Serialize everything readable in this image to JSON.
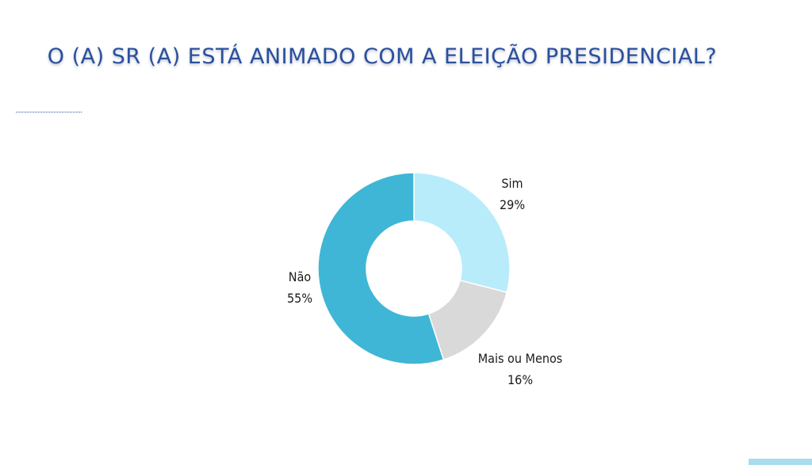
{
  "title": "O (A) SR (A) ESTÁ ANIMADO COM A ELEIÇÃO PRESIDENCIAL?",
  "colors": {
    "title": "#2a4f9c",
    "sim": "#b9ecfb",
    "mais_ou_menos": "#d9d9d9",
    "nao": "#3fb6d6",
    "corner_tab": "#a9dcef"
  },
  "chart_data": {
    "type": "pie",
    "variant": "donut",
    "title": "O (A) SR (A) ESTÁ ANIMADO COM A ELEIÇÃO PRESIDENCIAL?",
    "slices": [
      {
        "label": "Sim",
        "value": 29,
        "display": "29%",
        "color": "#b9ecfb"
      },
      {
        "label": "Mais ou Menos",
        "value": 16,
        "display": "16%",
        "color": "#d9d9d9"
      },
      {
        "label": "Não",
        "value": 55,
        "display": "55%",
        "color": "#3fb6d6"
      }
    ],
    "legend": "none",
    "labels": "outside"
  }
}
